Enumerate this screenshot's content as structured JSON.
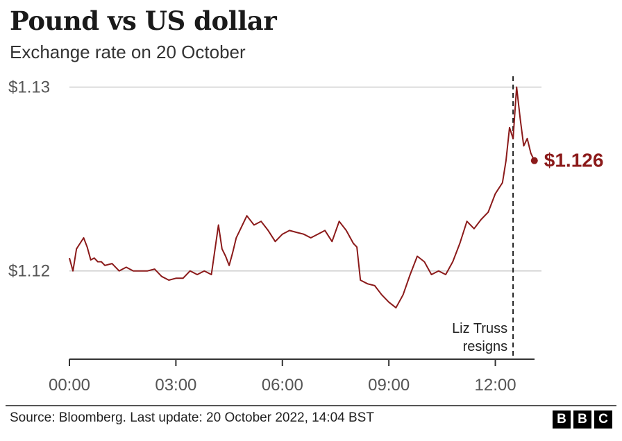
{
  "header": {
    "title": "Pound vs US dollar",
    "subtitle": "Exchange rate on 20 October"
  },
  "footer": {
    "source": "Source: Bloomberg. Last update: 20 October 2022, 14:04 BST",
    "logo_letters": [
      "B",
      "B",
      "C"
    ]
  },
  "colors": {
    "line": "#8b1a1a",
    "grid": "#cccccc",
    "axis": "#333333",
    "tick_text": "#555555"
  },
  "chart_data": {
    "type": "line",
    "title": "Pound vs US dollar",
    "subtitle": "Exchange rate on 20 October",
    "xlabel": "",
    "ylabel": "",
    "x_unit": "hours",
    "xlim": [
      0,
      13.3
    ],
    "ylim": [
      1.1152,
      1.1304
    ],
    "x_ticks": [
      0,
      3,
      6,
      9,
      12
    ],
    "x_tick_labels": [
      "00:00",
      "03:00",
      "06:00",
      "09:00",
      "12:00"
    ],
    "y_ticks": [
      1.12,
      1.13
    ],
    "y_tick_labels": [
      "$1.12",
      "$1.13"
    ],
    "grid": "horizontal",
    "legend": "none",
    "end_label": "$1.126",
    "annotation": {
      "x": 12.5,
      "text_lines": [
        "Liz Truss",
        "resigns"
      ],
      "style": "dashed vertical line"
    },
    "series": [
      {
        "x": [
          0.0,
          0.1,
          0.2,
          0.3,
          0.4,
          0.5,
          0.6,
          0.7,
          0.8,
          0.9,
          1.0,
          1.2,
          1.4,
          1.6,
          1.8,
          2.0,
          2.2,
          2.4,
          2.6,
          2.8,
          3.0,
          3.2,
          3.4,
          3.6,
          3.8,
          4.0,
          4.2,
          4.3,
          4.4,
          4.5,
          4.6,
          4.7,
          4.8,
          5.0,
          5.2,
          5.4,
          5.6,
          5.8,
          6.0,
          6.2,
          6.4,
          6.6,
          6.8,
          7.0,
          7.2,
          7.4,
          7.6,
          7.8,
          8.0,
          8.1,
          8.2,
          8.4,
          8.6,
          8.8,
          9.0,
          9.2,
          9.4,
          9.6,
          9.8,
          10.0,
          10.2,
          10.4,
          10.6,
          10.8,
          11.0,
          11.2,
          11.4,
          11.6,
          11.8,
          12.0,
          12.2,
          12.3,
          12.4,
          12.5,
          12.6,
          12.7,
          12.8,
          12.9,
          13.0,
          13.1
        ],
        "values": [
          1.1207,
          1.12,
          1.1212,
          1.1215,
          1.1218,
          1.1213,
          1.1206,
          1.1207,
          1.1205,
          1.1205,
          1.1203,
          1.1204,
          1.12,
          1.1202,
          1.12,
          1.12,
          1.12,
          1.1201,
          1.1197,
          1.1195,
          1.1196,
          1.1196,
          1.12,
          1.1198,
          1.12,
          1.1198,
          1.1225,
          1.1212,
          1.1208,
          1.1203,
          1.121,
          1.1218,
          1.1222,
          1.123,
          1.1225,
          1.1227,
          1.1222,
          1.1216,
          1.122,
          1.1222,
          1.1221,
          1.122,
          1.1218,
          1.122,
          1.1222,
          1.1216,
          1.1227,
          1.1222,
          1.1215,
          1.1213,
          1.1195,
          1.1193,
          1.1192,
          1.1187,
          1.1183,
          1.118,
          1.1187,
          1.1198,
          1.1208,
          1.1205,
          1.1198,
          1.12,
          1.1198,
          1.1205,
          1.1215,
          1.1227,
          1.1223,
          1.1228,
          1.1232,
          1.1242,
          1.1248,
          1.126,
          1.1278,
          1.1272,
          1.13,
          1.1283,
          1.1268,
          1.1272,
          1.1264,
          1.126
        ]
      }
    ]
  }
}
